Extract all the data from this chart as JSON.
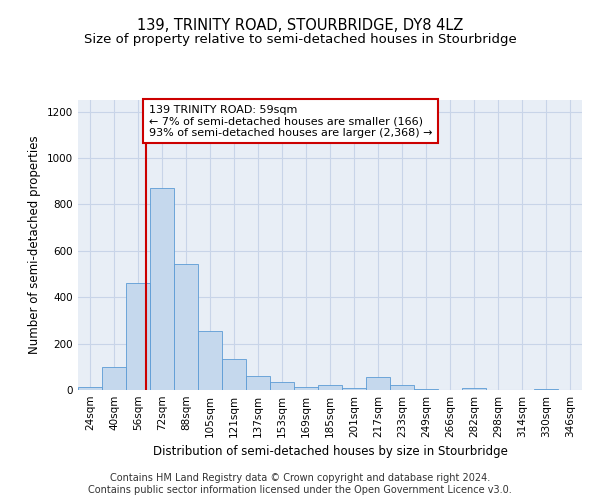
{
  "title": "139, TRINITY ROAD, STOURBRIDGE, DY8 4LZ",
  "subtitle": "Size of property relative to semi-detached houses in Stourbridge",
  "xlabel": "Distribution of semi-detached houses by size in Stourbridge",
  "ylabel": "Number of semi-detached properties",
  "footer_line1": "Contains HM Land Registry data © Crown copyright and database right 2024.",
  "footer_line2": "Contains public sector information licensed under the Open Government Licence v3.0.",
  "bar_labels": [
    "24sqm",
    "40sqm",
    "56sqm",
    "72sqm",
    "88sqm",
    "105sqm",
    "121sqm",
    "137sqm",
    "153sqm",
    "169sqm",
    "185sqm",
    "201sqm",
    "217sqm",
    "233sqm",
    "249sqm",
    "266sqm",
    "282sqm",
    "298sqm",
    "314sqm",
    "330sqm",
    "346sqm"
  ],
  "bar_values": [
    15,
    100,
    460,
    870,
    545,
    255,
    135,
    60,
    35,
    15,
    20,
    10,
    55,
    20,
    5,
    0,
    10,
    0,
    0,
    5,
    0
  ],
  "bar_color": "#c5d8ed",
  "bar_edge_color": "#5b9bd5",
  "grid_color": "#c8d4e8",
  "background_color": "#e8eef6",
  "vline_color": "#cc0000",
  "annotation_box_color": "#cc0000",
  "annotation_text_line1": "139 TRINITY ROAD: 59sqm",
  "annotation_text_line2": "← 7% of semi-detached houses are smaller (166)",
  "annotation_text_line3": "93% of semi-detached houses are larger (2,368) →",
  "ylim": [
    0,
    1250
  ],
  "yticks": [
    0,
    200,
    400,
    600,
    800,
    1000,
    1200
  ],
  "title_fontsize": 10.5,
  "subtitle_fontsize": 9.5,
  "axis_label_fontsize": 8.5,
  "tick_fontsize": 7.5,
  "annotation_fontsize": 8,
  "footer_fontsize": 7
}
